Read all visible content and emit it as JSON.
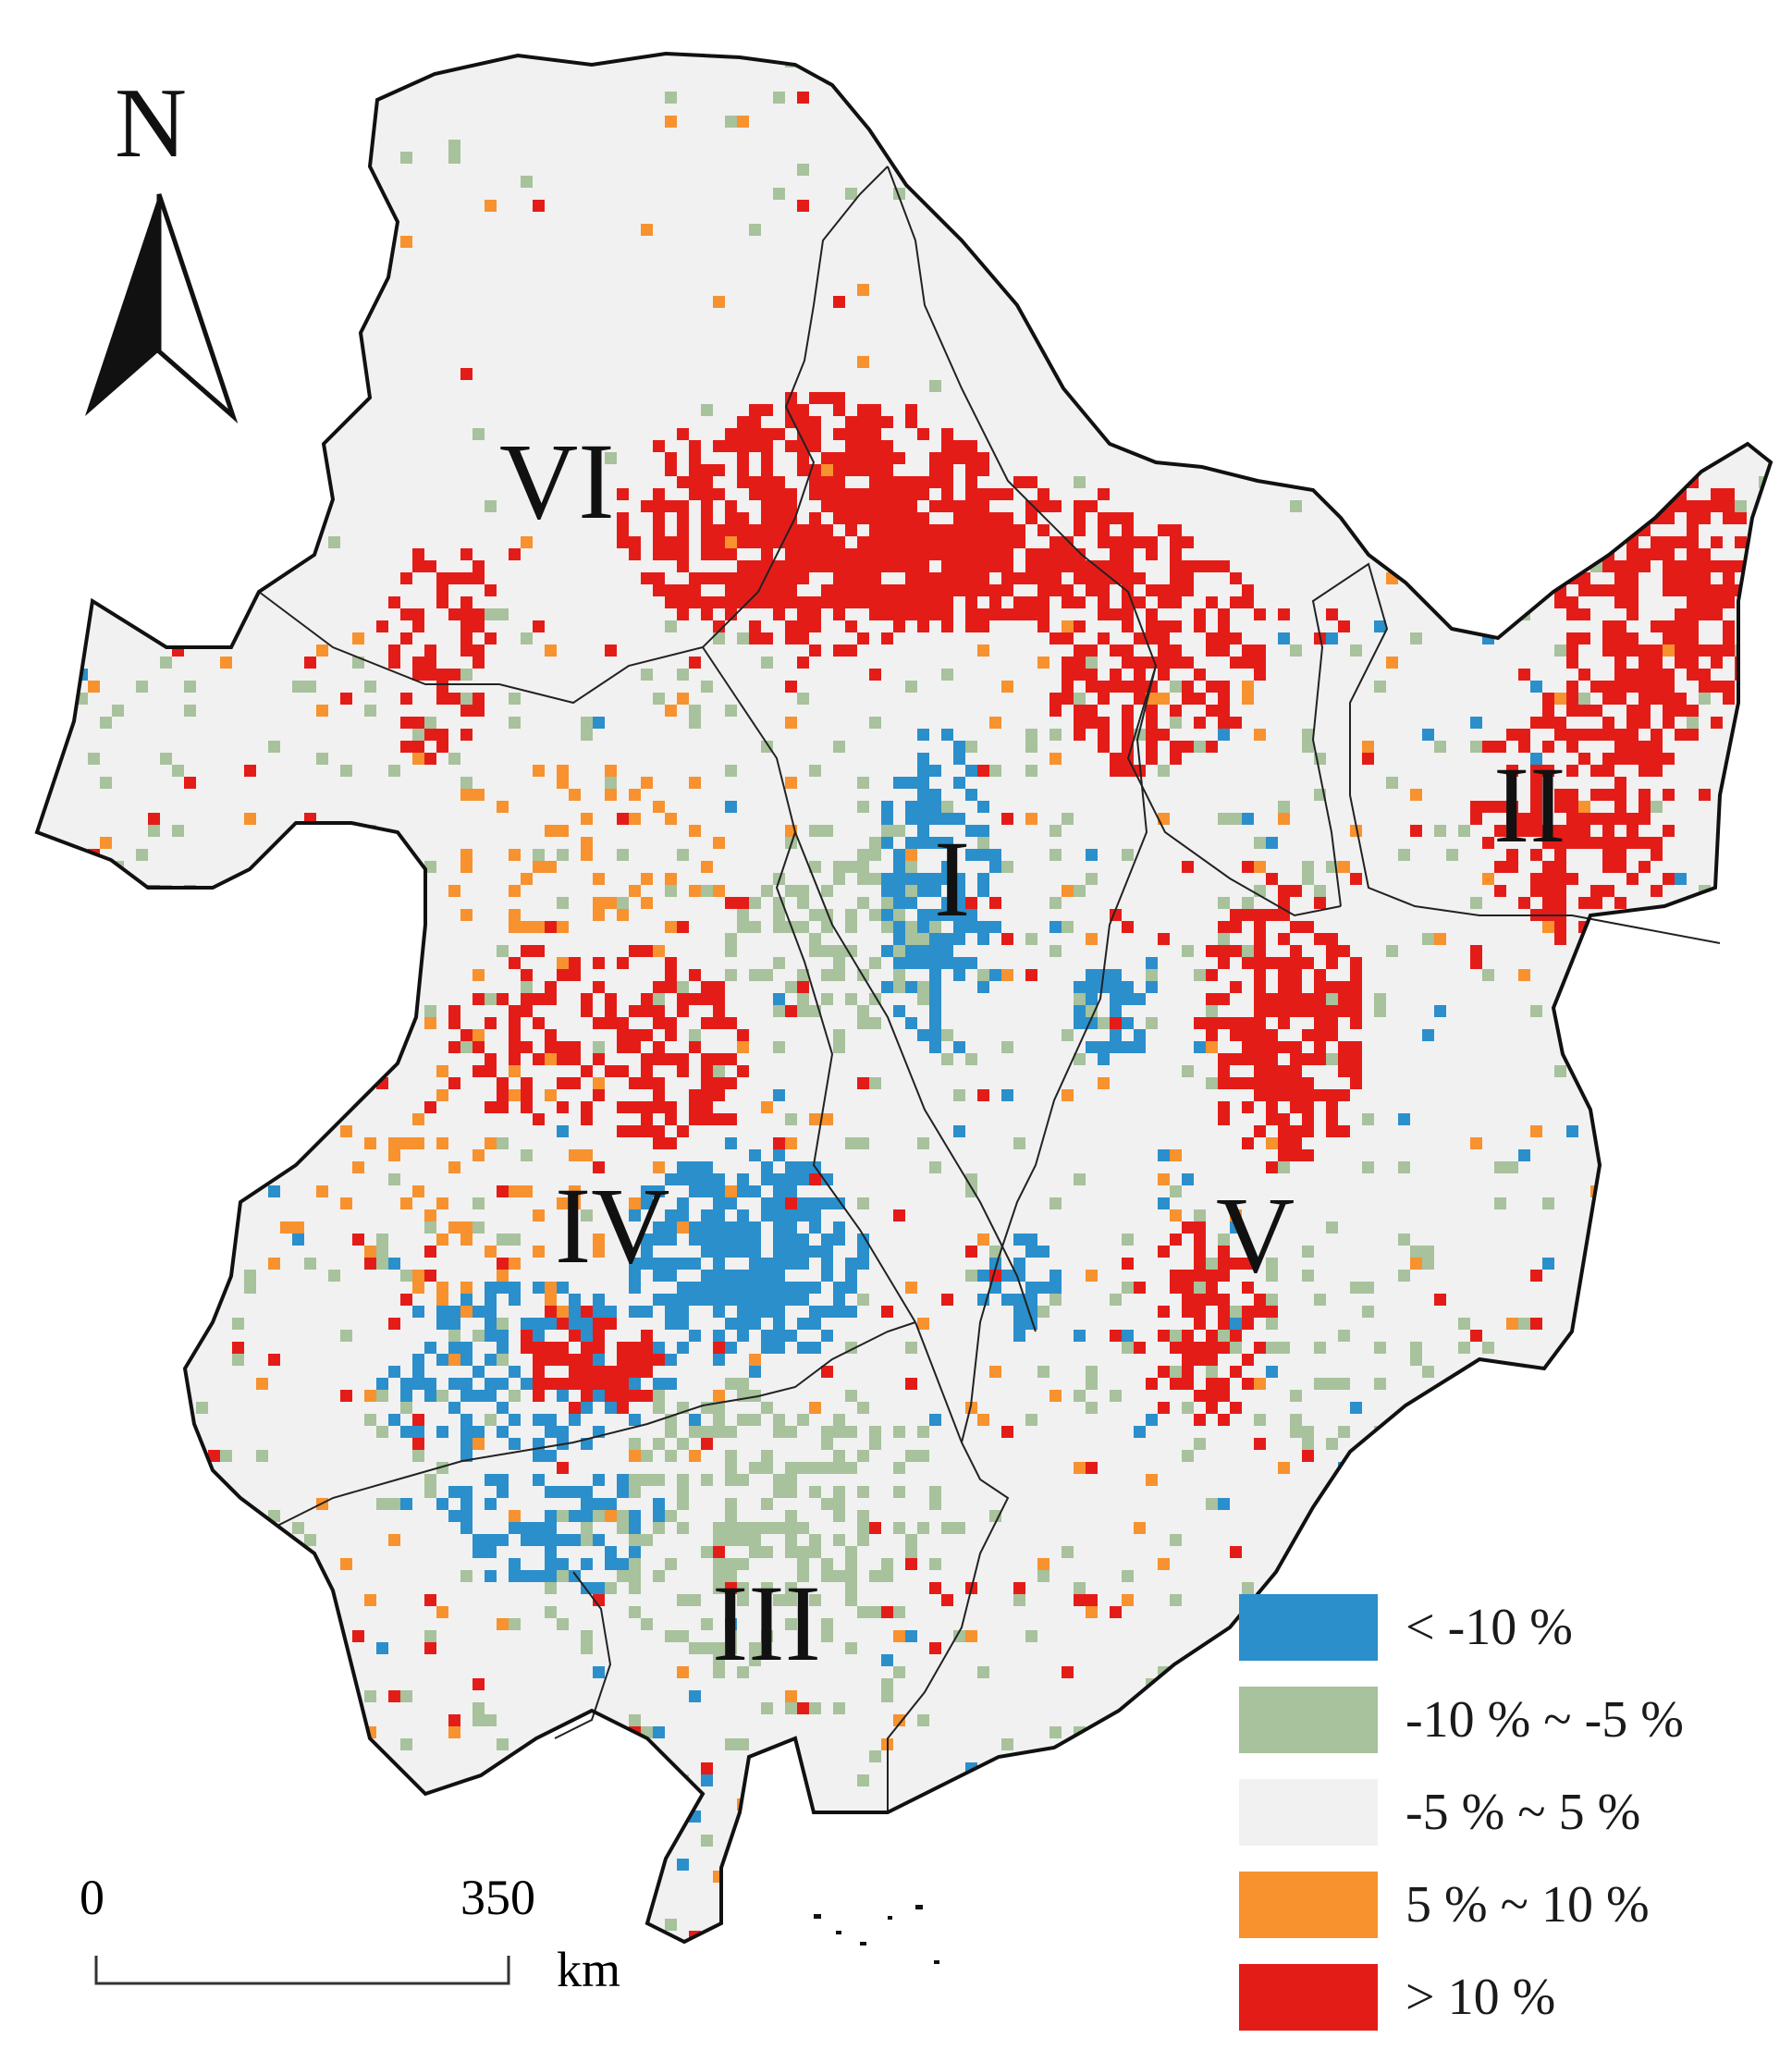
{
  "map": {
    "regions": [
      {
        "id": "I",
        "label": "I"
      },
      {
        "id": "II",
        "label": "II"
      },
      {
        "id": "III",
        "label": "III"
      },
      {
        "id": "IV",
        "label": "IV"
      },
      {
        "id": "V",
        "label": "V"
      },
      {
        "id": "VI",
        "label": "VI"
      }
    ],
    "north_arrow": {
      "letter": "N"
    },
    "scale_bar": {
      "start": "0",
      "end": "350",
      "unit": "km"
    },
    "legend": [
      {
        "label": "< -10 %",
        "color": "#2b8fcb"
      },
      {
        "label": "-10 % ~ -5 %",
        "color": "#a7c29c"
      },
      {
        "label": "-5 % ~ 5 %",
        "color": "#f1f1f1"
      },
      {
        "label": "5 % ~ 10 %",
        "color": "#f7922f"
      },
      {
        "label": "> 10 %",
        "color": "#e41c18"
      }
    ]
  }
}
